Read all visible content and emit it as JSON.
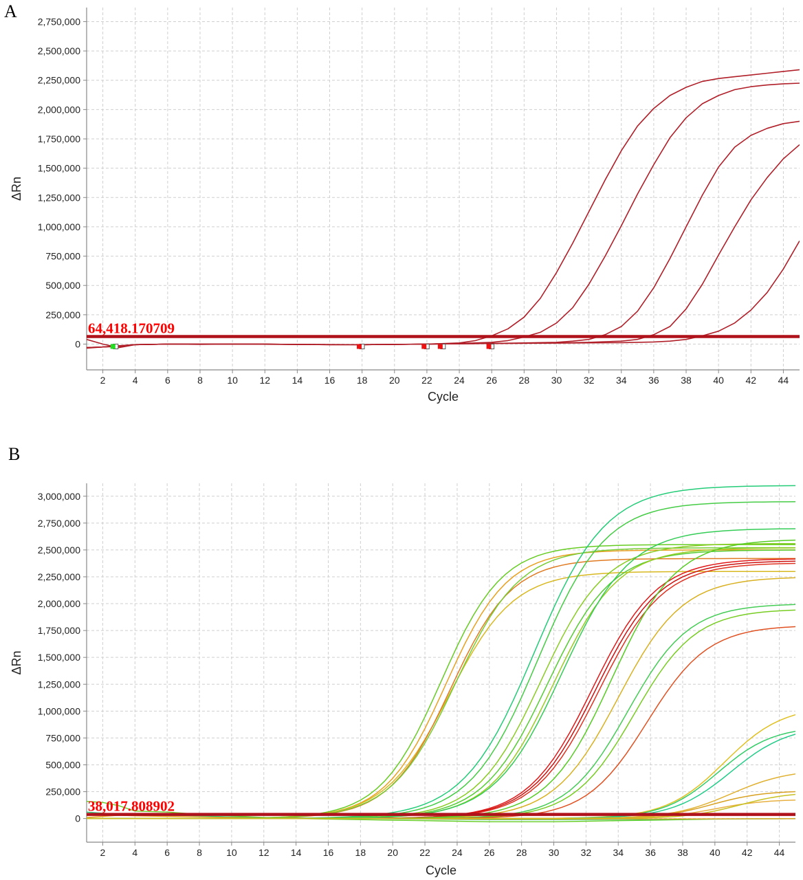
{
  "chart_data": [
    {
      "panel": "A",
      "type": "line",
      "xlabel": "Cycle",
      "ylabel": "ΔRn",
      "xlim": [
        1,
        45
      ],
      "ylim": [
        -220000,
        2870000
      ],
      "x_ticks": [
        2,
        4,
        6,
        8,
        10,
        12,
        14,
        16,
        18,
        20,
        22,
        24,
        26,
        28,
        30,
        32,
        34,
        36,
        38,
        40,
        42,
        44
      ],
      "y_ticks": [
        0,
        250000,
        500000,
        750000,
        1000000,
        1250000,
        1500000,
        1750000,
        2000000,
        2250000,
        2500000,
        2750000
      ],
      "y_tick_labels": [
        "0",
        "250,000",
        "500,000",
        "750,000",
        "1,000,000",
        "1,250,000",
        "1,500,000",
        "1,750,000",
        "2,000,000",
        "2,250,000",
        "2,500,000",
        "2,750,000"
      ],
      "grid": true,
      "threshold": {
        "value": 64418,
        "label": "64,418.170709",
        "color": "#b0121b"
      },
      "markers": [
        {
          "x": 2.9,
          "fill": "#22dd22"
        },
        {
          "x": 18.1,
          "fill": "#ee1111"
        },
        {
          "x": 22.1,
          "fill": "#ee1111"
        },
        {
          "x": 23.1,
          "fill": "#ee1111"
        },
        {
          "x": 26.1,
          "fill": "#ee1111"
        }
      ],
      "series": [
        {
          "color": "#b01e28",
          "x": [
            1,
            2,
            3,
            4,
            6,
            8,
            10,
            12,
            14,
            16,
            18,
            20,
            22,
            24,
            25,
            26,
            27,
            28,
            29,
            30,
            31,
            32,
            33,
            34,
            35,
            36,
            37,
            38,
            39,
            40,
            41,
            42,
            43,
            44,
            45
          ],
          "values": [
            40000,
            0,
            -30000,
            -5000,
            0,
            -2000,
            -1000,
            0,
            -3000,
            -5000,
            -5000,
            -3000,
            0,
            10000,
            30000,
            70000,
            130000,
            230000,
            390000,
            610000,
            860000,
            1130000,
            1400000,
            1650000,
            1860000,
            2010000,
            2120000,
            2190000,
            2240000,
            2265000,
            2280000,
            2295000,
            2310000,
            2325000,
            2340000
          ]
        },
        {
          "color": "#b01e28",
          "x": [
            1,
            2,
            3,
            4,
            6,
            8,
            10,
            12,
            14,
            16,
            18,
            20,
            22,
            24,
            26,
            27,
            28,
            29,
            30,
            31,
            32,
            33,
            34,
            35,
            36,
            37,
            38,
            39,
            40,
            41,
            42,
            43,
            44,
            45
          ],
          "values": [
            -35000,
            -25000,
            -20000,
            -5000,
            0,
            -2000,
            0,
            0,
            -3000,
            -5000,
            -5000,
            -3000,
            0,
            5000,
            15000,
            30000,
            60000,
            100000,
            180000,
            310000,
            510000,
            750000,
            1010000,
            1280000,
            1530000,
            1760000,
            1930000,
            2050000,
            2120000,
            2170000,
            2195000,
            2210000,
            2220000,
            2225000
          ]
        },
        {
          "color": "#b01e28",
          "x": [
            1,
            2,
            4,
            6,
            8,
            10,
            12,
            14,
            16,
            18,
            20,
            22,
            24,
            26,
            28,
            30,
            31,
            32,
            33,
            34,
            35,
            36,
            37,
            38,
            39,
            40,
            41,
            42,
            43,
            44,
            45
          ],
          "values": [
            -30000,
            -25000,
            -5000,
            0,
            0,
            0,
            0,
            -3000,
            -5000,
            -5000,
            -3000,
            0,
            3000,
            5000,
            10000,
            15000,
            25000,
            40000,
            80000,
            150000,
            280000,
            480000,
            730000,
            1000000,
            1270000,
            1510000,
            1680000,
            1780000,
            1840000,
            1880000,
            1900000
          ]
        },
        {
          "color": "#b01e28",
          "x": [
            1,
            2,
            4,
            6,
            10,
            14,
            18,
            22,
            26,
            30,
            32,
            34,
            35,
            36,
            37,
            38,
            39,
            40,
            41,
            42,
            43,
            44,
            45
          ],
          "values": [
            -30000,
            -25000,
            -5000,
            0,
            0,
            -3000,
            -5000,
            0,
            5000,
            10000,
            15000,
            25000,
            40000,
            80000,
            150000,
            300000,
            510000,
            760000,
            1000000,
            1230000,
            1420000,
            1580000,
            1700000
          ]
        },
        {
          "color": "#b01e28",
          "x": [
            1,
            2,
            4,
            6,
            10,
            14,
            18,
            22,
            26,
            30,
            34,
            36,
            37,
            38,
            39,
            40,
            41,
            42,
            43,
            44,
            45
          ],
          "values": [
            -30000,
            -25000,
            -5000,
            0,
            0,
            -3000,
            -5000,
            0,
            5000,
            8000,
            12000,
            18000,
            25000,
            40000,
            70000,
            110000,
            180000,
            290000,
            440000,
            640000,
            880000
          ]
        }
      ]
    },
    {
      "panel": "B",
      "type": "line",
      "xlabel": "Cycle",
      "ylabel": "ΔRn",
      "xlim": [
        1,
        45
      ],
      "ylim": [
        -220000,
        3120000
      ],
      "x_ticks": [
        2,
        4,
        6,
        8,
        10,
        12,
        14,
        16,
        18,
        20,
        22,
        24,
        26,
        28,
        30,
        32,
        34,
        36,
        38,
        40,
        42,
        44
      ],
      "y_ticks": [
        0,
        250000,
        500000,
        750000,
        1000000,
        1250000,
        1500000,
        1750000,
        2000000,
        2250000,
        2500000,
        2750000,
        3000000
      ],
      "y_tick_labels": [
        "0",
        "250,000",
        "500,000",
        "750,000",
        "1,000,000",
        "1,250,000",
        "1,500,000",
        "1,750,000",
        "2,000,000",
        "2,250,000",
        "2,500,000",
        "2,750,000",
        "3,000,000"
      ],
      "grid": true,
      "threshold": {
        "value": 38018,
        "label": "38,017.808902",
        "color": "#b0121b"
      },
      "sigmoid_curves": [
        {
          "color": "#66cc22",
          "plateau": 2550000,
          "midpoint": 23.0,
          "slope": 1.9
        },
        {
          "color": "#e8a020",
          "plateau": 2500000,
          "midpoint": 23.3,
          "slope": 1.9
        },
        {
          "color": "#d8b820",
          "plateau": 2300000,
          "midpoint": 23.5,
          "slope": 2.0
        },
        {
          "color": "#e07a20",
          "plateau": 2420000,
          "midpoint": 23.6,
          "slope": 1.9
        },
        {
          "color": "#77cc33",
          "plateau": 2520000,
          "midpoint": 23.9,
          "slope": 2.0
        },
        {
          "color": "#22cc77",
          "plateau": 3100000,
          "midpoint": 28.8,
          "slope": 2.2
        },
        {
          "color": "#44cc44",
          "plateau": 2950000,
          "midpoint": 29.0,
          "slope": 2.1
        },
        {
          "color": "#88cc22",
          "plateau": 2560000,
          "midpoint": 29.2,
          "slope": 2.0
        },
        {
          "color": "#55cc33",
          "plateau": 2500000,
          "midpoint": 29.6,
          "slope": 2.0
        },
        {
          "color": "#99cc22",
          "plateau": 2520000,
          "midpoint": 30.0,
          "slope": 2.0
        },
        {
          "color": "#33cc55",
          "plateau": 2700000,
          "midpoint": 30.5,
          "slope": 2.1
        },
        {
          "color": "#e01818",
          "plateau": 2420000,
          "midpoint": 32.4,
          "slope": 2.0
        },
        {
          "color": "#cc1010",
          "plateau": 2400000,
          "midpoint": 32.6,
          "slope": 2.0
        },
        {
          "color": "#e03020",
          "plateau": 2380000,
          "midpoint": 32.8,
          "slope": 2.0
        },
        {
          "color": "#d8b020",
          "plateau": 2250000,
          "midpoint": 34.0,
          "slope": 2.0
        },
        {
          "color": "#55cc22",
          "plateau": 2600000,
          "midpoint": 33.6,
          "slope": 2.0
        },
        {
          "color": "#44cc55",
          "plateau": 2000000,
          "midpoint": 34.6,
          "slope": 1.9
        },
        {
          "color": "#77cc22",
          "plateau": 1950000,
          "midpoint": 35.0,
          "slope": 1.9
        },
        {
          "color": "#e05020",
          "plateau": 1800000,
          "midpoint": 35.8,
          "slope": 1.9
        },
        {
          "color": "#e0c020",
          "plateau": 1050000,
          "midpoint": 40.6,
          "slope": 1.8
        },
        {
          "color": "#33cc66",
          "plateau": 860000,
          "midpoint": 40.2,
          "slope": 1.7
        },
        {
          "color": "#22cc88",
          "plateau": 870000,
          "midpoint": 41.0,
          "slope": 1.8
        },
        {
          "color": "#e0b030",
          "plateau": 460000,
          "midpoint": 41.0,
          "slope": 1.8
        },
        {
          "color": "#d8a020",
          "plateau": 260000,
          "midpoint": 39.8,
          "slope": 1.6
        },
        {
          "color": "#e8b040",
          "plateau": 180000,
          "midpoint": 40.0,
          "slope": 1.6
        },
        {
          "color": "#c8c020",
          "plateau": 250000,
          "midpoint": 41.5,
          "slope": 1.6
        }
      ],
      "baseline_curves": [
        {
          "color": "#66cc22",
          "x": [
            1,
            2,
            3,
            4,
            6,
            8,
            10,
            12,
            14,
            16,
            18,
            20,
            22,
            24,
            26,
            28,
            30,
            32,
            34,
            36,
            38,
            40,
            42,
            44,
            45
          ],
          "values": [
            160000,
            150000,
            120000,
            70000,
            60000,
            40000,
            25000,
            10000,
            0,
            -5000,
            -10000,
            -15000,
            -20000,
            -25000,
            -30000,
            -30000,
            -30000,
            -25000,
            -20000,
            -15000,
            -10000,
            -5000,
            -3000,
            -2000,
            0
          ]
        },
        {
          "color": "#22cc77",
          "x": [
            1,
            2,
            3,
            4,
            6,
            8,
            10,
            14,
            18,
            22,
            26,
            30,
            34,
            38,
            42,
            45
          ],
          "values": [
            60000,
            50000,
            40000,
            35000,
            30000,
            25000,
            15000,
            5000,
            0,
            -5000,
            -10000,
            -10000,
            -8000,
            -5000,
            -3000,
            -2000
          ]
        },
        {
          "color": "#e8a020",
          "x": [
            1,
            2,
            3,
            4,
            6,
            8,
            10,
            14,
            18,
            22,
            26,
            30,
            34,
            38,
            42,
            45
          ],
          "values": [
            10000,
            20000,
            30000,
            25000,
            20000,
            15000,
            10000,
            5000,
            0,
            -3000,
            -5000,
            -5000,
            -4000,
            -3000,
            -2000,
            -1000
          ]
        }
      ]
    }
  ],
  "panels": {
    "a_letter": "A",
    "b_letter": "B"
  },
  "colors": {
    "grid": "#cfcfcf",
    "axis": "#888888",
    "threshold": "#b0121b",
    "threshold_text": "#ff0000"
  }
}
